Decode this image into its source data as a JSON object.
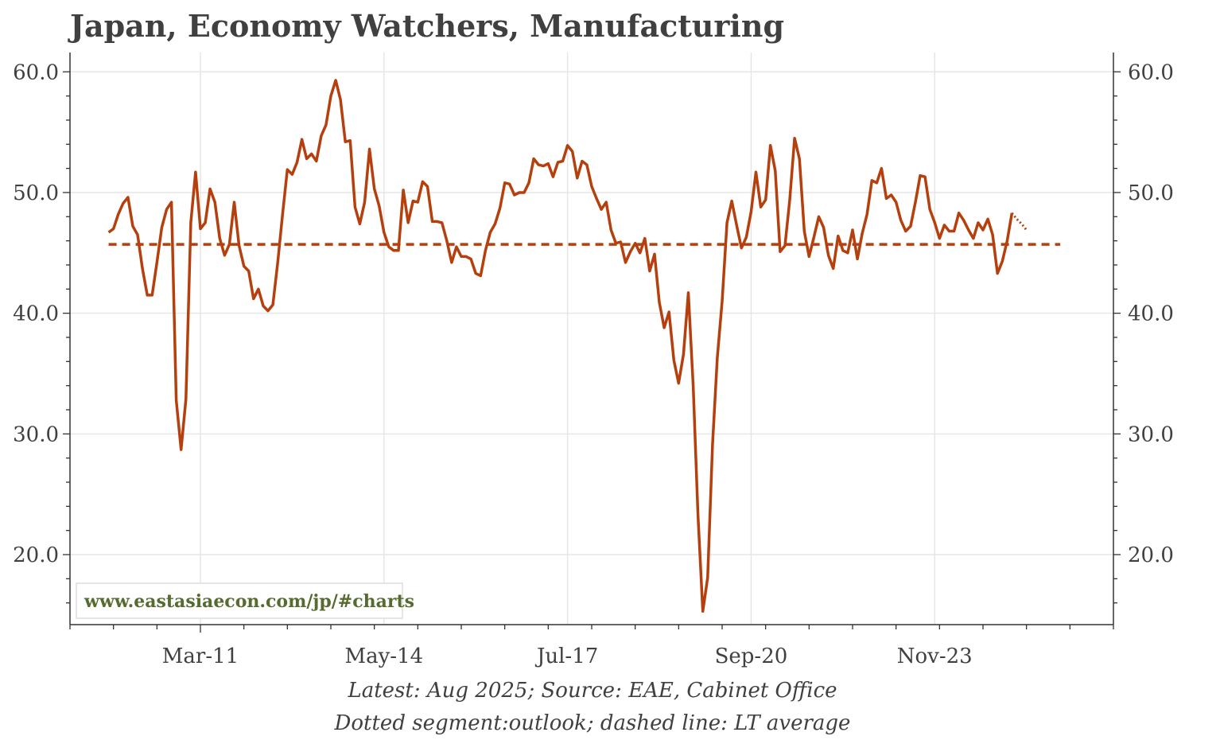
{
  "title": "Japan, Economy Watchers, Manufacturing",
  "footnotes": [
    "Latest: Aug 2025; Source: EAE, Cabinet Office",
    "Dotted segment:outlook; dashed line: LT average"
  ],
  "watermark": "www.eastasiaecon.com/jp/#charts",
  "colors": {
    "series": "#b5400e",
    "watermark": "#556b2f",
    "grid": "#e6e6e6",
    "axis": "#333333",
    "text": "#404040"
  },
  "chart_data": {
    "type": "line",
    "x_start": "2009-08",
    "frequency": "monthly",
    "xlim": [
      "2008-12",
      "2026-12"
    ],
    "ylim": [
      14.2,
      61.6
    ],
    "x_ticks": [
      {
        "label": "Mar-11",
        "date": "2011-03"
      },
      {
        "label": "May-14",
        "date": "2014-05"
      },
      {
        "label": "Jul-17",
        "date": "2017-07"
      },
      {
        "label": "Sep-20",
        "date": "2020-09"
      },
      {
        "label": "Nov-23",
        "date": "2023-11"
      }
    ],
    "y_ticks": [
      "20.0",
      "30.0",
      "40.0",
      "50.0",
      "60.0"
    ],
    "y_tick_values": [
      20,
      30,
      40,
      50,
      60
    ],
    "grid": true,
    "series": [
      {
        "style": "solid",
        "values": [
          46.7,
          47.0,
          48.2,
          49.1,
          49.6,
          47.2,
          46.5,
          43.7,
          41.5,
          41.5,
          44.2,
          47.1,
          48.6,
          49.2,
          32.8,
          28.7,
          32.9,
          47.5,
          51.7,
          47.0,
          47.5,
          50.3,
          49.2,
          46.2,
          44.8,
          45.7,
          49.2,
          45.6,
          43.9,
          43.5,
          41.2,
          42.0,
          40.6,
          40.2,
          40.7,
          44.2,
          48.2,
          51.9,
          51.5,
          52.5,
          54.4,
          52.8,
          53.2,
          52.6,
          54.7,
          55.6,
          58.0,
          59.3,
          57.7,
          54.2,
          54.3,
          48.8,
          47.4,
          49.2,
          53.6,
          50.3,
          48.9,
          46.7,
          45.5,
          45.2,
          45.2,
          50.2,
          47.5,
          49.3,
          49.2,
          50.9,
          50.5,
          47.6,
          47.6,
          47.5,
          46.0,
          44.2,
          45.5,
          44.7,
          44.7,
          44.5,
          43.3,
          43.1,
          45.2,
          46.7,
          47.4,
          48.7,
          50.8,
          50.7,
          49.8,
          50.0,
          50.0,
          50.8,
          52.8,
          52.3,
          52.2,
          52.4,
          51.3,
          52.5,
          52.6,
          53.9,
          53.4,
          51.2,
          52.6,
          52.3,
          50.5,
          49.5,
          48.6,
          49.2,
          46.9,
          45.8,
          45.9,
          44.2,
          45.1,
          45.8,
          45.0,
          46.2,
          43.5,
          44.9,
          40.9,
          38.8,
          40.1,
          36.1,
          34.2,
          36.6,
          41.7,
          34.0,
          23.3,
          15.3,
          18.1,
          29.1,
          36.3,
          41.0,
          47.5,
          49.3,
          47.3,
          45.4,
          46.3,
          48.4,
          51.7,
          48.8,
          49.4,
          53.9,
          51.8,
          45.1,
          45.6,
          49.4,
          54.5,
          52.8,
          46.8,
          44.7,
          46.3,
          48.0,
          47.1,
          44.8,
          43.7,
          46.4,
          45.2,
          45.0,
          46.9,
          44.5,
          46.6,
          48.2,
          51.0,
          50.8,
          52.0,
          49.5,
          49.8,
          49.2,
          47.7,
          46.8,
          47.2,
          49.2,
          51.4,
          51.3,
          48.6,
          47.5,
          46.2,
          47.3,
          46.8,
          46.8,
          48.3,
          47.7,
          46.9,
          46.2,
          47.5,
          46.9,
          47.8,
          46.5,
          43.3,
          44.3,
          46.0,
          48.3
        ]
      },
      {
        "style": "dotted",
        "values": [
          48.3,
          47.8,
          47.4,
          46.9
        ]
      },
      {
        "style": "dashed",
        "constant": 45.7,
        "x_from": "2009-08",
        "x_to": "2026-01"
      }
    ]
  }
}
